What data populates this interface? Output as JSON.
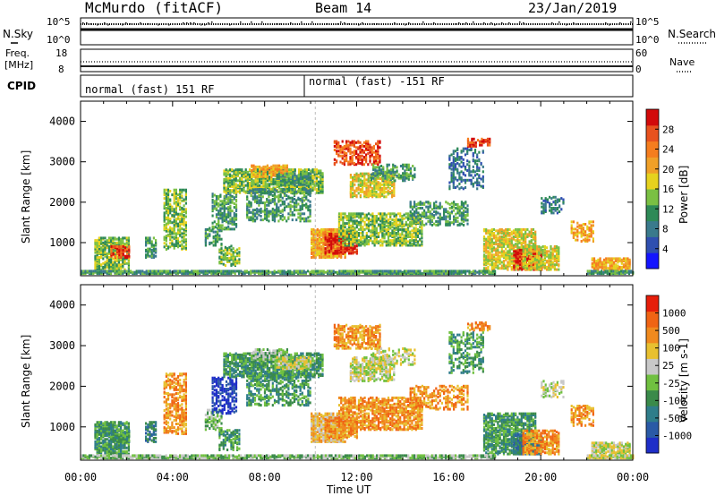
{
  "header": {
    "station": "McMurdo (fitACF)",
    "beam": "Beam 14",
    "date": "23/Jan/2019"
  },
  "noise_panel": {
    "left_label": "N.Sky",
    "right_label": "N.Search",
    "left_ticks": [
      "10^5",
      "10^0"
    ],
    "right_ticks": [
      "10^5",
      "10^0"
    ]
  },
  "freq_panel": {
    "left_label_1": "Freq.",
    "left_label_2": "[MHz]",
    "right_label": "Nave",
    "left_ticks": [
      "18",
      "8"
    ],
    "right_ticks": [
      "60",
      "0"
    ]
  },
  "cpid_panel": {
    "label": "CPID",
    "modes": [
      "normal (fast) 151 RF",
      "normal (fast) -151 RF"
    ]
  },
  "chart_data": [
    {
      "type": "heatmap",
      "title": "Power",
      "xlabel": "",
      "ylabel": "Slant Range [km]",
      "xlim": [
        "00:00",
        "00:00"
      ],
      "ylim": [
        180,
        4500
      ],
      "y_ticks": [
        1000,
        2000,
        3000,
        4000
      ],
      "x_ticks": [
        "00:00",
        "04:00",
        "08:00",
        "12:00",
        "16:00",
        "20:00",
        "00:00"
      ],
      "colorbar": {
        "label": "Power [dB]",
        "ticks": [
          "4",
          "8",
          "12",
          "16",
          "20",
          "24",
          "28"
        ],
        "colors": [
          "#1414ff",
          "#2f4fb0",
          "#3a7a8c",
          "#2e8a57",
          "#7ac043",
          "#e6d21e",
          "#f0a028",
          "#f57d1e",
          "#e8521e",
          "#d20a0a"
        ]
      }
    },
    {
      "type": "heatmap",
      "title": "Velocity",
      "xlabel": "Time UT",
      "ylabel": "Slant Range [km]",
      "xlim": [
        "00:00",
        "00:00"
      ],
      "ylim": [
        180,
        4500
      ],
      "y_ticks": [
        1000,
        2000,
        3000,
        4000
      ],
      "x_ticks": [
        "00:00",
        "04:00",
        "08:00",
        "12:00",
        "16:00",
        "20:00",
        "00:00"
      ],
      "colorbar": {
        "label": "Velocity [m s-1]",
        "ticks": [
          "1000",
          "500",
          "100",
          "25",
          "-25",
          "-100",
          "-500",
          "-1000"
        ],
        "colors": [
          "#1e2ec8",
          "#2a5aa6",
          "#2f7d8a",
          "#3a8a4a",
          "#70c040",
          "#c8c8c8",
          "#e8c030",
          "#f08a1e",
          "#f06414",
          "#e61e0a"
        ]
      }
    }
  ]
}
